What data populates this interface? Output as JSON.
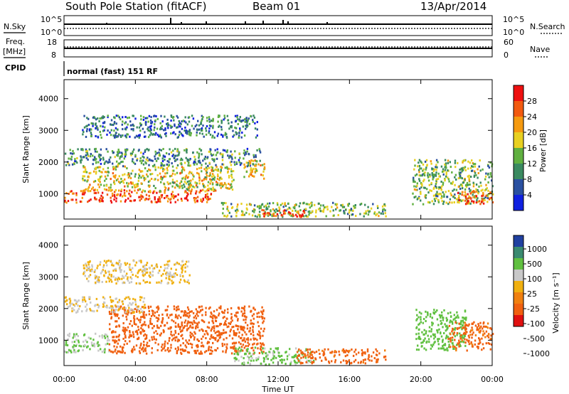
{
  "header": {
    "station": "South Pole Station (fitACF)",
    "beam": "Beam 01",
    "date": "13/Apr/2014"
  },
  "strips": {
    "nsky_label": "N.Sky",
    "nsky_ticks": [
      "10^5",
      "10^0"
    ],
    "nsearch_label": "N.Search",
    "nsearch_ticks": [
      "10^5",
      "10^0"
    ],
    "freq_label": "Freq.",
    "freq_unit": "[MHz]",
    "freq_ticks": [
      "18",
      "8"
    ],
    "nave_label": "Nave",
    "nave_ticks": [
      "60",
      "0"
    ],
    "cpid_label": "CPID",
    "cpid_text": "normal (fast) 151 RF"
  },
  "axes": {
    "ylabel": "Slant Range [km]",
    "yticks": [
      "4000",
      "3000",
      "2000",
      "1000"
    ],
    "xticks": [
      "00:00",
      "04:00",
      "08:00",
      "12:00",
      "16:00",
      "20:00",
      "00:00"
    ],
    "xlabel": "Time UT"
  },
  "power_bar": {
    "title": "Power [dB]",
    "ticks": [
      "28",
      "24",
      "20",
      "16",
      "12",
      "8",
      "4"
    ],
    "colors": [
      "#ee1010",
      "#f25a10",
      "#f59a10",
      "#e8d020",
      "#60b040",
      "#3a8a60",
      "#2a50a0",
      "#1020e0"
    ]
  },
  "velocity_bar": {
    "title": "Velocity [m s⁻¹]",
    "ticks": [
      "1000",
      "500",
      "100",
      "25",
      "-25",
      "-100",
      "-500",
      "-1000"
    ],
    "colors": [
      "#2040a0",
      "#3a8a70",
      "#60c040",
      "#c8c8c8",
      "#f0b010",
      "#f08010",
      "#f06010",
      "#e01010"
    ]
  },
  "chart_data": [
    {
      "type": "heatmap",
      "title": "Power [dB]",
      "xlabel": "Time UT",
      "ylabel": "Slant Range [km]",
      "xlim": [
        0,
        24
      ],
      "ylim": [
        200,
        4600
      ],
      "clim": [
        0,
        32
      ],
      "scatter_ranges": [
        {
          "time_start": 0.0,
          "time_end": 8.4,
          "range_start": 750,
          "range_end": 1150,
          "value": 27
        },
        {
          "time_start": 1.0,
          "time_end": 9.5,
          "range_start": 1100,
          "range_end": 1900,
          "value": 18
        },
        {
          "time_start": 0.0,
          "time_end": 11.0,
          "range_start": 1900,
          "range_end": 2450,
          "value": 10
        },
        {
          "time_start": 1.0,
          "time_end": 10.8,
          "range_start": 2800,
          "range_end": 3500,
          "value": 8
        },
        {
          "time_start": 10.0,
          "time_end": 11.2,
          "range_start": 1500,
          "range_end": 2100,
          "value": 20
        },
        {
          "time_start": 8.8,
          "time_end": 18.0,
          "range_start": 300,
          "range_end": 750,
          "value": 14
        },
        {
          "time_start": 11.0,
          "time_end": 13.5,
          "range_start": 300,
          "range_end": 550,
          "value": 27
        },
        {
          "time_start": 19.5,
          "time_end": 24.0,
          "range_start": 700,
          "range_end": 2100,
          "value": 14
        },
        {
          "time_start": 22.0,
          "time_end": 24.0,
          "range_start": 700,
          "range_end": 1100,
          "value": 26
        }
      ]
    },
    {
      "type": "heatmap",
      "title": "Velocity [m s⁻¹]",
      "xlabel": "Time UT",
      "ylabel": "Slant Range [km]",
      "xlim": [
        0,
        24
      ],
      "ylim": [
        200,
        4600
      ],
      "scatter_ranges": [
        {
          "time_start": 0.0,
          "time_end": 2.5,
          "range_start": 650,
          "range_end": 1250,
          "value": 120
        },
        {
          "time_start": 2.5,
          "time_end": 11.2,
          "range_start": 600,
          "range_end": 2100,
          "value": -300
        },
        {
          "time_start": 0.0,
          "time_end": 4.5,
          "range_start": 1900,
          "range_end": 2400,
          "value": 20
        },
        {
          "time_start": 1.0,
          "time_end": 7.0,
          "range_start": 2800,
          "range_end": 3550,
          "value": 15
        },
        {
          "time_start": 9.5,
          "time_end": 14.0,
          "range_start": 250,
          "range_end": 800,
          "value": 150
        },
        {
          "time_start": 13.0,
          "time_end": 18.0,
          "range_start": 300,
          "range_end": 750,
          "value": -200
        },
        {
          "time_start": 19.7,
          "time_end": 22.5,
          "range_start": 700,
          "range_end": 2000,
          "value": 300
        },
        {
          "time_start": 21.5,
          "time_end": 24.0,
          "range_start": 700,
          "range_end": 1600,
          "value": -150
        }
      ]
    }
  ]
}
